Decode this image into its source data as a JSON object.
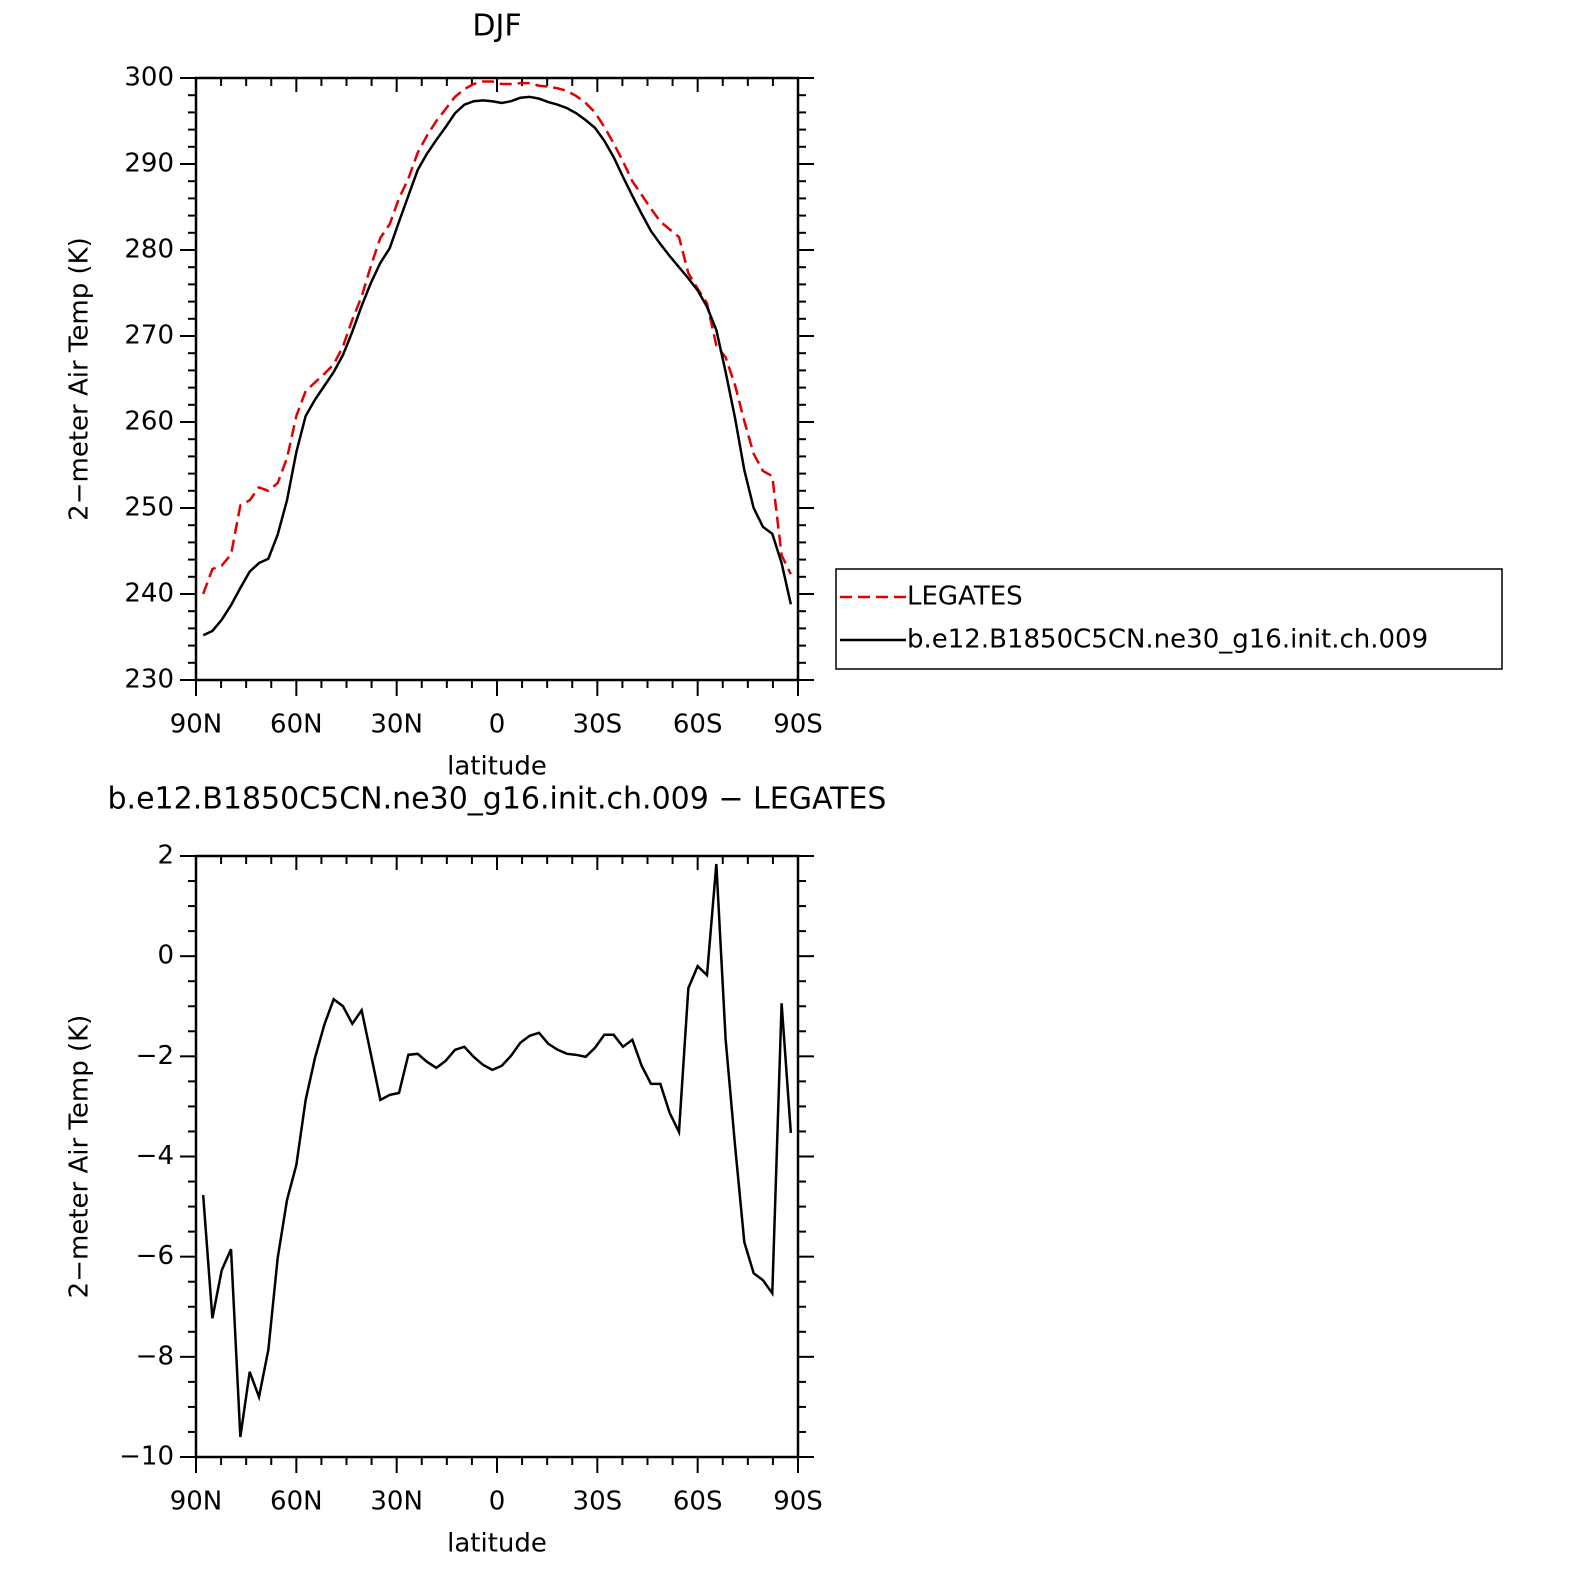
{
  "chart_data": [
    {
      "type": "line",
      "title": "DJF",
      "xlabel": "latitude",
      "ylabel": "2−meter Air Temp (K)",
      "x": [
        87.86,
        85.1,
        82.31,
        79.53,
        76.74,
        73.95,
        71.16,
        68.37,
        65.58,
        62.79,
        60.0,
        57.21,
        54.42,
        51.63,
        48.84,
        46.05,
        43.26,
        40.47,
        37.67,
        34.88,
        32.09,
        29.3,
        26.51,
        23.72,
        20.93,
        18.14,
        15.35,
        12.56,
        9.77,
        6.98,
        4.19,
        1.4,
        -1.4,
        -4.19,
        -6.98,
        -9.77,
        -12.56,
        -15.35,
        -18.14,
        -20.93,
        -23.72,
        -26.51,
        -29.3,
        -32.09,
        -34.88,
        -37.67,
        -40.47,
        -43.26,
        -46.05,
        -48.84,
        -51.63,
        -54.42,
        -57.21,
        -60.0,
        -62.79,
        -65.58,
        -68.37,
        -71.16,
        -73.95,
        -76.74,
        -79.53,
        -82.31,
        -85.1,
        -87.86
      ],
      "series": [
        {
          "name": "LEGATES",
          "color": "#e00000",
          "dash": true,
          "values": [
            240.0,
            242.9,
            243.3,
            244.6,
            250.3,
            250.9,
            252.4,
            252.0,
            252.9,
            255.8,
            260.7,
            263.6,
            264.6,
            265.6,
            266.7,
            268.8,
            271.9,
            274.6,
            278.2,
            281.4,
            283.0,
            286.0,
            288.3,
            291.3,
            293.3,
            295.0,
            296.4,
            297.8,
            298.7,
            299.3,
            299.6,
            299.6,
            299.3,
            299.3,
            299.4,
            299.4,
            299.1,
            299.0,
            298.8,
            298.5,
            297.9,
            297.1,
            296.0,
            294.3,
            292.4,
            290.3,
            288.0,
            286.4,
            284.8,
            283.3,
            282.4,
            281.5,
            277.3,
            275.5,
            273.8,
            268.9,
            267.5,
            264.3,
            260.1,
            256.3,
            254.3,
            253.7,
            244.5,
            242.3
          ]
        },
        {
          "name": "b.e12.B1850C5CN.ne30_g16.init.ch.009",
          "color": "#000000",
          "dash": false,
          "values": [
            235.2,
            235.7,
            237.0,
            238.7,
            240.7,
            242.6,
            243.6,
            244.1,
            246.9,
            250.9,
            256.5,
            260.7,
            262.6,
            264.2,
            265.8,
            267.8,
            270.5,
            273.5,
            276.2,
            278.5,
            280.2,
            283.3,
            286.3,
            289.3,
            291.2,
            292.8,
            294.3,
            295.9,
            296.9,
            297.3,
            297.4,
            297.3,
            297.1,
            297.3,
            297.7,
            297.8,
            297.6,
            297.2,
            296.9,
            296.5,
            295.9,
            295.1,
            294.2,
            292.7,
            290.8,
            288.5,
            286.3,
            284.2,
            282.2,
            280.7,
            279.3,
            278.0,
            276.7,
            275.3,
            273.4,
            270.7,
            265.8,
            260.5,
            254.4,
            250.0,
            247.8,
            247.0,
            243.6,
            238.8
          ]
        }
      ],
      "xlim": [
        90,
        -90
      ],
      "xticks": [
        {
          "value": 90,
          "label": "90N"
        },
        {
          "value": 60,
          "label": "60N"
        },
        {
          "value": 30,
          "label": "30N"
        },
        0,
        {
          "value": -30,
          "label": "30S"
        },
        {
          "value": -60,
          "label": "60S"
        },
        {
          "value": -90,
          "label": "90S"
        }
      ],
      "ylim": [
        230,
        300
      ],
      "yticks": [
        230,
        240,
        250,
        260,
        270,
        280,
        290,
        300
      ],
      "legend": "right"
    },
    {
      "type": "line",
      "title": "b.e12.B1850C5CN.ne30_g16.init.ch.009 − LEGATES",
      "xlabel": "latitude",
      "ylabel": "2−meter Air Temp (K)",
      "x": [
        87.86,
        85.1,
        82.31,
        79.53,
        76.74,
        73.95,
        71.16,
        68.37,
        65.58,
        62.79,
        60.0,
        57.21,
        54.42,
        51.63,
        48.84,
        46.05,
        43.26,
        40.47,
        37.67,
        34.88,
        32.09,
        29.3,
        26.51,
        23.72,
        20.93,
        18.14,
        15.35,
        12.56,
        9.77,
        6.98,
        4.19,
        1.4,
        -1.4,
        -4.19,
        -6.98,
        -9.77,
        -12.56,
        -15.35,
        -18.14,
        -20.93,
        -23.72,
        -26.51,
        -29.3,
        -32.09,
        -34.88,
        -37.67,
        -40.47,
        -43.26,
        -46.05,
        -48.84,
        -51.63,
        -54.42,
        -57.21,
        -60.0,
        -62.79,
        -65.58,
        -68.37,
        -71.16,
        -73.95,
        -76.74,
        -79.53,
        -82.31,
        -85.1,
        -87.86
      ],
      "series": [
        {
          "color": "#000000",
          "dash": false,
          "values": [
            -4.77,
            -7.23,
            -6.27,
            -5.85,
            -9.6,
            -8.3,
            -8.8,
            -7.86,
            -6.03,
            -4.87,
            -4.17,
            -2.87,
            -2.03,
            -1.37,
            -0.86,
            -1.0,
            -1.35,
            -1.08,
            -1.97,
            -2.87,
            -2.77,
            -2.73,
            -1.97,
            -1.95,
            -2.11,
            -2.23,
            -2.09,
            -1.87,
            -1.81,
            -2.01,
            -2.17,
            -2.27,
            -2.19,
            -1.99,
            -1.73,
            -1.59,
            -1.53,
            -1.75,
            -1.87,
            -1.95,
            -1.97,
            -2.01,
            -1.83,
            -1.57,
            -1.57,
            -1.81,
            -1.67,
            -2.19,
            -2.55,
            -2.55,
            -3.13,
            -3.51,
            -0.64,
            -0.2,
            -0.38,
            1.84,
            -1.67,
            -3.77,
            -5.71,
            -6.33,
            -6.47,
            -6.73,
            -0.94,
            -3.53
          ]
        }
      ],
      "xlim": [
        90,
        -90
      ],
      "xticks": [
        {
          "value": 90,
          "label": "90N"
        },
        {
          "value": 60,
          "label": "60N"
        },
        {
          "value": 30,
          "label": "30N"
        },
        0,
        {
          "value": -30,
          "label": "30S"
        },
        {
          "value": -60,
          "label": "60S"
        },
        {
          "value": -90,
          "label": "90S"
        }
      ],
      "ylim": [
        -10,
        2
      ],
      "yticks": [
        {
          "value": -10,
          "label": "−10"
        },
        {
          "value": -8,
          "label": "−8"
        },
        {
          "value": -6,
          "label": "−6"
        },
        {
          "value": -4,
          "label": "−4"
        },
        {
          "value": -2,
          "label": "−2"
        },
        0,
        2
      ]
    }
  ]
}
